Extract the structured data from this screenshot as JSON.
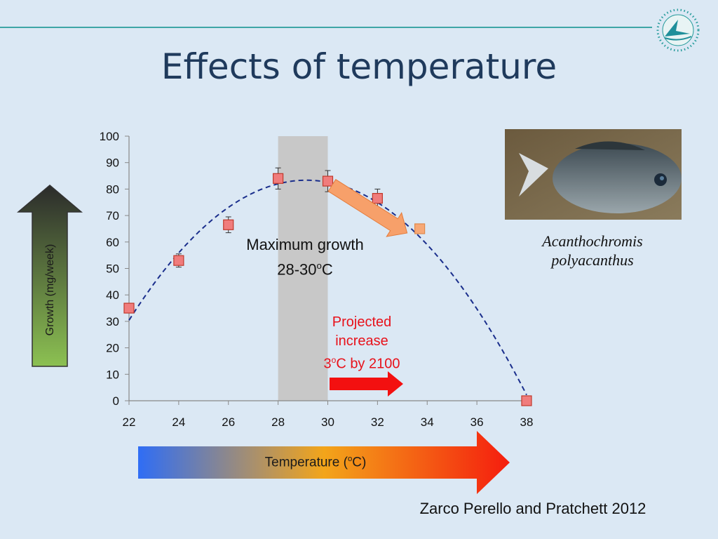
{
  "slide": {
    "title": "Effects of temperature",
    "y_axis_label": "Growth (mg/week)",
    "x_axis_label": "Temperature (oC)",
    "max_growth_line1": "Maximum growth",
    "max_growth_line2": "28-30oC",
    "projected_line1": "Projected",
    "projected_line2": "increase",
    "projected_line3": "3oC by 2100",
    "species_line1": "Acanthochromis",
    "species_line2": "polyacanthus",
    "citation": "Zarco Perello and Pratchett 2012"
  },
  "colors": {
    "accent_line": "#3fa6a6",
    "title": "#1f3a5c",
    "projected_text": "#e8111a",
    "marker_fill": "#f07c7c",
    "marker_stroke": "#c0392b",
    "projected_marker": "#f7a876",
    "fit_line": "#1a2e8c",
    "optimum_band": "#c8c8c8"
  },
  "chart_data": {
    "type": "scatter",
    "x": [
      22,
      24,
      26,
      28,
      30,
      32,
      33.7,
      38
    ],
    "values": [
      35,
      53,
      66.5,
      84,
      83,
      76.5,
      65,
      0
    ],
    "error": [
      1.5,
      2.5,
      3,
      4,
      4,
      3.5,
      0,
      0
    ],
    "projected_point_index": 6,
    "xlim": [
      22,
      38
    ],
    "ylim": [
      0,
      100
    ],
    "x_ticks": [
      "22",
      "24",
      "26",
      "28",
      "30",
      "32",
      "34",
      "36",
      "38"
    ],
    "y_ticks": [
      "0",
      "10",
      "20",
      "30",
      "40",
      "50",
      "60",
      "70",
      "80",
      "90",
      "100"
    ],
    "optimum_band": [
      28,
      30
    ],
    "fit_curve": "dashed quadratic fit",
    "grid": false
  }
}
